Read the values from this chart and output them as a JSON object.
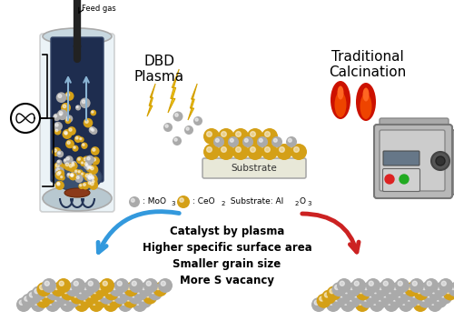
{
  "bg_color": "#ffffff",
  "dbd_label": "DBD\nPlasma",
  "trad_label": "Traditional\nCalcination",
  "substrate_label": "Substrate",
  "center_text_lines": [
    "Catalyst by plasma",
    "Higher specific surface area",
    "Smaller grain size",
    "More S vacancy"
  ],
  "feed_gas_label": "Feed gas",
  "reactor_bg": "#1e2d4f",
  "reactor_glass": "#c8d8e8",
  "particle_gold": "#d4a017",
  "particle_gray": "#aaaaaa",
  "substrate_color": "#d0d0b0",
  "substrate_edge": "#aaaaaa",
  "arrow_blue": "#3399dd",
  "arrow_red": "#cc2222",
  "furnace_gray": "#b8b8b8",
  "furnace_side": "#999999"
}
